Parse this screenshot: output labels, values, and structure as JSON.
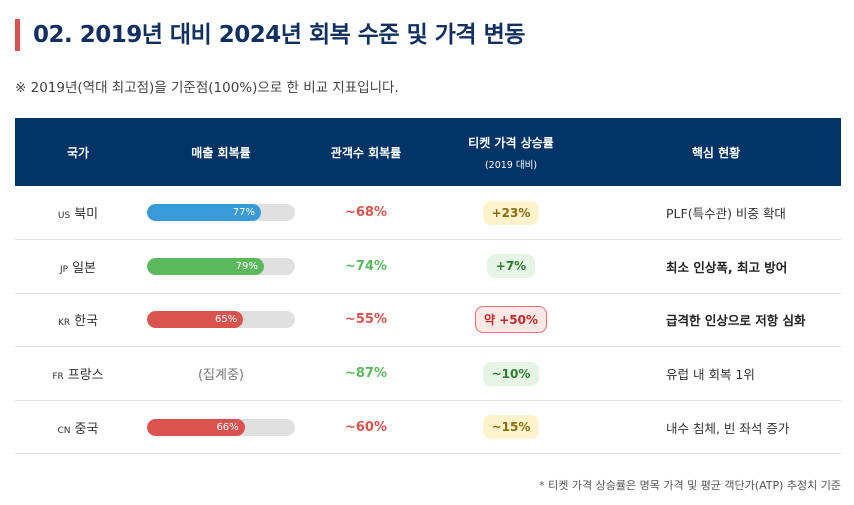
{
  "title": "02. 2019년 대비 2024년 회복 수준 및 가격 변동",
  "note": "※ 2019년(역대 최고점)을 기준점(100%)으로 한 비교 지표입니다.",
  "headers": {
    "country": "국가",
    "revenue": "매출 회복률",
    "audience": "관객수 회복률",
    "ticket": "티켓 가격 상승률",
    "ticket_sub": "(2019 대비)",
    "key": "핵심 현황"
  },
  "rows": [
    {
      "code": "US",
      "name": "북미",
      "revenue": "77%",
      "revenue_value": 77,
      "bar_color": "#3a99d8",
      "audience": "~68%",
      "audience_color": "#d9534f",
      "ticket": "+23%",
      "ticket_bg": "#fff3cd",
      "ticket_fg": "#8a6d0b",
      "ticket_border": "transparent",
      "key": "PLF(특수관) 비중 확대",
      "key_bold": false
    },
    {
      "code": "JP",
      "name": "일본",
      "revenue": "79%",
      "revenue_value": 79,
      "bar_color": "#5cb85c",
      "audience": "~74%",
      "audience_color": "#5cb85c",
      "ticket": "+7%",
      "ticket_bg": "#e6f4e6",
      "ticket_fg": "#2e7d32",
      "ticket_border": "transparent",
      "key": "최소 인상폭, 최고 방어",
      "key_bold": true
    },
    {
      "code": "KR",
      "name": "한국",
      "revenue": "65%",
      "revenue_value": 65,
      "bar_color": "#d9534f",
      "audience": "~55%",
      "audience_color": "#d9534f",
      "ticket": "약 +50%",
      "ticket_bg": "#fde8e8",
      "ticket_fg": "#c62828",
      "ticket_border": "#e57373",
      "key": "급격한 인상으로 저항 심화",
      "key_bold": true
    },
    {
      "code": "FR",
      "name": "프랑스",
      "revenue": "(집계중)",
      "revenue_value": null,
      "bar_color": "",
      "audience": "~87%",
      "audience_color": "#5cb85c",
      "ticket": "~10%",
      "ticket_bg": "#e6f4e6",
      "ticket_fg": "#2e7d32",
      "ticket_border": "transparent",
      "key": "유럽 내 회복 1위",
      "key_bold": false
    },
    {
      "code": "CN",
      "name": "중국",
      "revenue": "66%",
      "revenue_value": 66,
      "bar_color": "#d9534f",
      "audience": "~60%",
      "audience_color": "#d9534f",
      "ticket": "~15%",
      "ticket_bg": "#fff3cd",
      "ticket_fg": "#8a6d0b",
      "ticket_border": "transparent",
      "key": "내수 침체, 빈 좌석 증가",
      "key_bold": false
    }
  ],
  "footnote": "* 티켓 가격 상승률은 명목 가격 및 평균 객단가(ATP) 추정치 기준"
}
